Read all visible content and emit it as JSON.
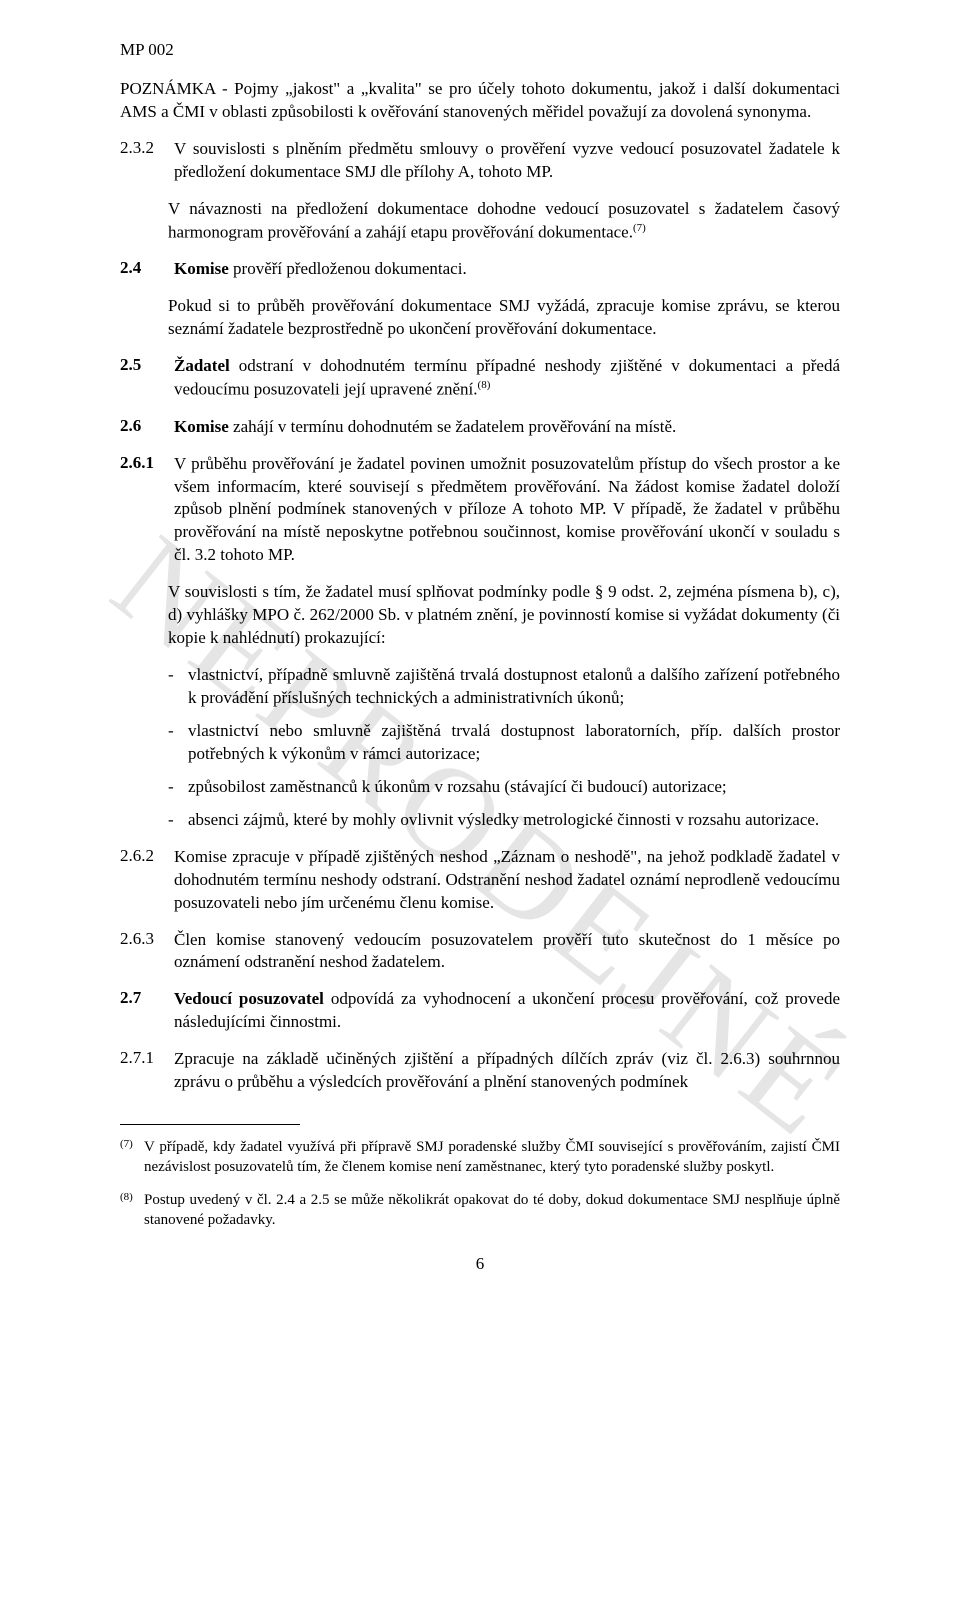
{
  "header": {
    "code": "MP 002"
  },
  "watermark": "NEPRODEJNÉ",
  "note": {
    "text": "POZNÁMKA - Pojmy „jakost\" a „kvalita\" se pro účely tohoto dokumentu, jakož i další dokumentaci AMS a ČMI v oblasti způsobilosti k ověřování stanovených měřidel považují za dovolená synonyma."
  },
  "clauses": {
    "c2_3_2": {
      "num": "2.3.2",
      "text": "V souvislosti s plněním předmětu smlouvy o prověření vyzve vedoucí posuzovatel žadatele k předložení dokumentace SMJ dle přílohy A, tohoto MP.",
      "followup": "V návaznosti na předložení dokumentace dohodne vedoucí posuzovatel s žadatelem časový harmonogram prověřování a zahájí etapu prověřování dokumentace.",
      "sup": "(7)"
    },
    "c2_4": {
      "num": "2.4",
      "lead_bold": "Komise",
      "lead_rest": " prověří předloženou dokumentaci.",
      "followup": "Pokud si to průběh prověřování dokumentace SMJ vyžádá, zpracuje komise zprávu, se kterou seznámí žadatele bezprostředně po ukončení prověřování dokumentace."
    },
    "c2_5": {
      "num": "2.5",
      "lead_bold": "Žadatel",
      "lead_rest": " odstraní v dohodnutém termínu případné neshody zjištěné v dokumentaci a předá vedoucímu posuzovateli její upravené znění.",
      "sup": "(8)"
    },
    "c2_6": {
      "num": "2.6",
      "lead_bold": "Komise",
      "lead_rest": " zahájí v termínu dohodnutém se žadatelem prověřování na místě."
    },
    "c2_6_1": {
      "num": "2.6.1",
      "p1": "V průběhu prověřování je žadatel povinen umožnit posuzovatelům přístup do všech prostor a ke všem informacím, které souvisejí s předmětem prověřování. Na žádost komise žadatel doloží způsob plnění podmínek stanovených v příloze A tohoto MP. V případě, že žadatel v průběhu prověřování na místě neposkytne potřebnou součinnost, komise prověřování ukončí v souladu s čl. 3.2 tohoto MP.",
      "p2": "V souvislosti s tím, že žadatel musí splňovat podmínky podle § 9 odst. 2, zejména písmena b), c), d) vyhlášky MPO č. 262/2000 Sb. v platném znění, je povinností komise si vyžádat dokumenty (či kopie k nahlédnutí) prokazující:",
      "bullets": [
        "vlastnictví, případně smluvně zajištěná trvalá dostupnost etalonů a dalšího zařízení potřebného k provádění příslušných technických a administrativních úkonů;",
        "vlastnictví nebo smluvně zajištěná trvalá dostupnost laboratorních, příp. dalších prostor potřebných k výkonům v rámci autorizace;",
        "způsobilost zaměstnanců k úkonům v rozsahu (stávající či budoucí) autorizace;",
        "absenci zájmů, které by mohly ovlivnit výsledky metrologické činnosti v rozsahu autorizace."
      ]
    },
    "c2_6_2": {
      "num": "2.6.2",
      "text": "Komise zpracuje v případě zjištěných neshod „Záznam o neshodě\", na jehož podkladě žadatel v dohodnutém termínu neshody odstraní. Odstranění neshod žadatel oznámí neprodleně vedoucímu posuzovateli nebo jím určenému členu komise."
    },
    "c2_6_3": {
      "num": "2.6.3",
      "text": "Člen komise stanovený vedoucím posuzovatelem prověří tuto skutečnost do 1 měsíce po oznámení odstranění neshod žadatelem."
    },
    "c2_7": {
      "num": "2.7",
      "lead_bold": "Vedoucí posuzovatel",
      "lead_rest": " odpovídá za vyhodnocení a ukončení procesu prověřování, což provede následujícími činnostmi."
    },
    "c2_7_1": {
      "num": "2.7.1",
      "text": "Zpracuje na základě učiněných zjištění a případných dílčích zpráv (viz čl. 2.6.3) souhrnnou zprávu o průběhu a výsledcích prověřování a plnění stanovených podmínek"
    }
  },
  "footnotes": {
    "f7": {
      "marker": "(7)",
      "text": "V případě, kdy žadatel využívá při přípravě SMJ poradenské služby ČMI související s prověřováním, zajistí ČMI nezávislost posuzovatelů tím, že členem komise není zaměstnanec, který tyto poradenské služby poskytl."
    },
    "f8": {
      "marker": "(8)",
      "text": "Postup uvedený v čl. 2.4 a 2.5 se může několikrát opakovat do té doby, dokud dokumentace SMJ nesplňuje úplně stanovené požadavky."
    }
  },
  "pageNumber": "6",
  "colors": {
    "text": "#000000",
    "background": "#ffffff",
    "watermark": "rgba(0,0,0,0.10)"
  },
  "typography": {
    "body_fontsize_pt": 12,
    "footnote_fontsize_pt": 10,
    "font_family": "Times New Roman"
  }
}
